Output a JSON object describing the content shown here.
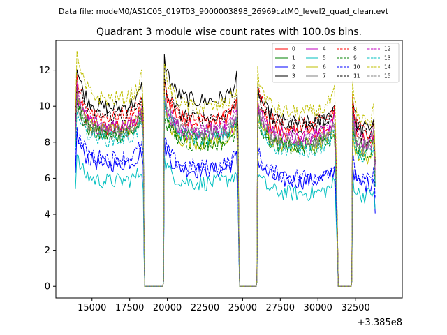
{
  "header": {
    "data_file": "Data file: modeM0/AS1C05_019T03_9000003898_26969cztM0_level2_quad_clean.evt"
  },
  "chart_data": {
    "type": "line",
    "title": "Quadrant 3 module wise count rates with 100.0s bins.",
    "xlabel": "",
    "ylabel": "",
    "x_offset_label": "+3.385e8",
    "xlim": [
      12600,
      35600
    ],
    "ylim": [
      -0.65,
      13.65
    ],
    "xticks": [
      15000,
      17500,
      20000,
      22500,
      25000,
      27500,
      30000,
      32500
    ],
    "xtick_labels": [
      "15000",
      "17500",
      "20000",
      "22500",
      "25000",
      "27500",
      "30000",
      "32500"
    ],
    "yticks": [
      0,
      2,
      4,
      6,
      8,
      10,
      12
    ],
    "ytick_labels": [
      "0",
      "2",
      "4",
      "6",
      "8",
      "10",
      "12"
    ],
    "legend_position": "top-right",
    "legend_columns": 4,
    "segments": [
      {
        "start": 14000,
        "end": 18350,
        "start_drop": 0,
        "end_drop": 0.15
      },
      {
        "start": 19800,
        "end": 24650,
        "start_drop": 0,
        "end_drop": 0.35
      },
      {
        "start": 26000,
        "end": 31200,
        "start_drop": 0.15,
        "end_drop": 0.35
      },
      {
        "start": 32300,
        "end": 33750,
        "start_drop": 0.0,
        "end_drop": 0.35
      }
    ],
    "gaps": [
      [
        18500,
        19700
      ],
      [
        24800,
        25900
      ],
      [
        31350,
        32200
      ]
    ],
    "series": [
      {
        "name": "0",
        "color": "#ff0000",
        "dash": "solid",
        "levels": [
          9.0,
          9.4,
          8.7,
          8.4
        ]
      },
      {
        "name": "1",
        "color": "#008000",
        "dash": "solid",
        "levels": [
          8.6,
          8.4,
          8.0,
          7.8
        ]
      },
      {
        "name": "2",
        "color": "#0000ff",
        "dash": "solid",
        "levels": [
          7.0,
          6.6,
          6.0,
          5.8
        ]
      },
      {
        "name": "3",
        "color": "#000000",
        "dash": "solid",
        "levels": [
          10.2,
          10.6,
          9.3,
          9.0
        ]
      },
      {
        "name": "4",
        "color": "#bf00bf",
        "dash": "solid",
        "levels": [
          9.0,
          8.7,
          8.5,
          8.0
        ]
      },
      {
        "name": "5",
        "color": "#00bfbf",
        "dash": "solid",
        "levels": [
          6.0,
          5.9,
          5.3,
          5.2
        ]
      },
      {
        "name": "6",
        "color": "#bfbf00",
        "dash": "solid",
        "levels": [
          9.0,
          8.2,
          8.0,
          7.4
        ]
      },
      {
        "name": "7",
        "color": "#808080",
        "dash": "solid",
        "levels": [
          8.8,
          8.8,
          8.2,
          8.0
        ]
      },
      {
        "name": "8",
        "color": "#ff0000",
        "dash": "dashed",
        "levels": [
          9.7,
          9.5,
          9.2,
          8.9
        ]
      },
      {
        "name": "9",
        "color": "#008000",
        "dash": "dashed",
        "levels": [
          8.8,
          8.1,
          7.9,
          7.6
        ]
      },
      {
        "name": "10",
        "color": "#0000ff",
        "dash": "dashed",
        "levels": [
          7.3,
          6.8,
          6.3,
          6.0
        ]
      },
      {
        "name": "11",
        "color": "#000000",
        "dash": "dashed",
        "levels": [
          9.7,
          9.6,
          9.2,
          8.6
        ]
      },
      {
        "name": "12",
        "color": "#bf00bf",
        "dash": "dashed",
        "levels": [
          9.2,
          8.9,
          8.6,
          8.3
        ]
      },
      {
        "name": "13",
        "color": "#00bfbf",
        "dash": "dashed",
        "levels": [
          8.4,
          8.5,
          7.8,
          7.5
        ]
      },
      {
        "name": "14",
        "color": "#bfbf00",
        "dash": "dashed",
        "levels": [
          10.7,
          10.2,
          9.9,
          9.4
        ]
      },
      {
        "name": "15",
        "color": "#808080",
        "dash": "dashed",
        "levels": [
          8.9,
          8.7,
          8.3,
          7.9
        ]
      }
    ]
  }
}
